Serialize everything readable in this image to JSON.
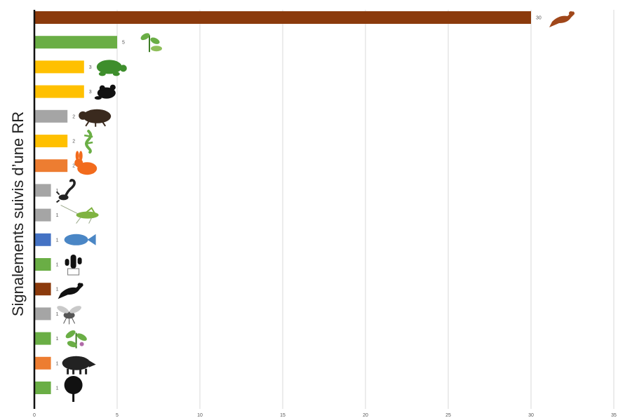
{
  "chart_data": {
    "type": "bar",
    "orientation": "horizontal",
    "ylabel": "Signalements suivis d’une RR",
    "xlabel": "",
    "xlim": [
      0,
      35
    ],
    "xticks": [
      0,
      5,
      10,
      15,
      20,
      25,
      30,
      35
    ],
    "grid": "vertical",
    "categories": [
      "bird-brown",
      "plant-shoot",
      "turtle",
      "frog",
      "beetle",
      "lizard",
      "rabbit",
      "scorpion",
      "grasshopper",
      "fish",
      "cactus",
      "bird-black",
      "fly",
      "plant-leaves",
      "boar",
      "tree"
    ],
    "values": [
      30,
      5,
      3,
      3,
      2,
      2,
      2,
      1,
      1,
      1,
      1,
      1,
      1,
      1,
      1,
      1
    ],
    "data_labels": [
      "30",
      "5",
      "3",
      "3",
      "2",
      "2",
      "2",
      "1",
      "1",
      "1",
      "1",
      "1",
      "1",
      "1",
      "1",
      "1"
    ],
    "bar_colors": [
      "#8B3A0C",
      "#6AAE45",
      "#FFC000",
      "#FFC000",
      "#A5A5A5",
      "#FFC000",
      "#ED7D31",
      "#A5A5A5",
      "#A5A5A5",
      "#4472C4",
      "#6AAE45",
      "#8B3A0C",
      "#A5A5A5",
      "#6AAE45",
      "#ED7D31",
      "#6AAE45"
    ],
    "icons": [
      "bird-icon",
      "plant-shoot-icon",
      "turtle-icon",
      "frog-icon",
      "beetle-icon",
      "lizard-icon",
      "rabbit-icon",
      "scorpion-icon",
      "grasshopper-icon",
      "fish-icon",
      "cactus-icon",
      "bird-icon",
      "fly-icon",
      "plant-icon",
      "boar-icon",
      "tree-icon"
    ],
    "icon_colors": [
      "#A0471A",
      "#6AAE45",
      "#3E8E2C",
      "#111111",
      "#3A2A1E",
      "#6AAE45",
      "#F26B1D",
      "#222222",
      "#7FB341",
      "#4A86C5",
      "#111111",
      "#111111",
      "#555555",
      "#6AAE45",
      "#222222",
      "#111111"
    ]
  }
}
